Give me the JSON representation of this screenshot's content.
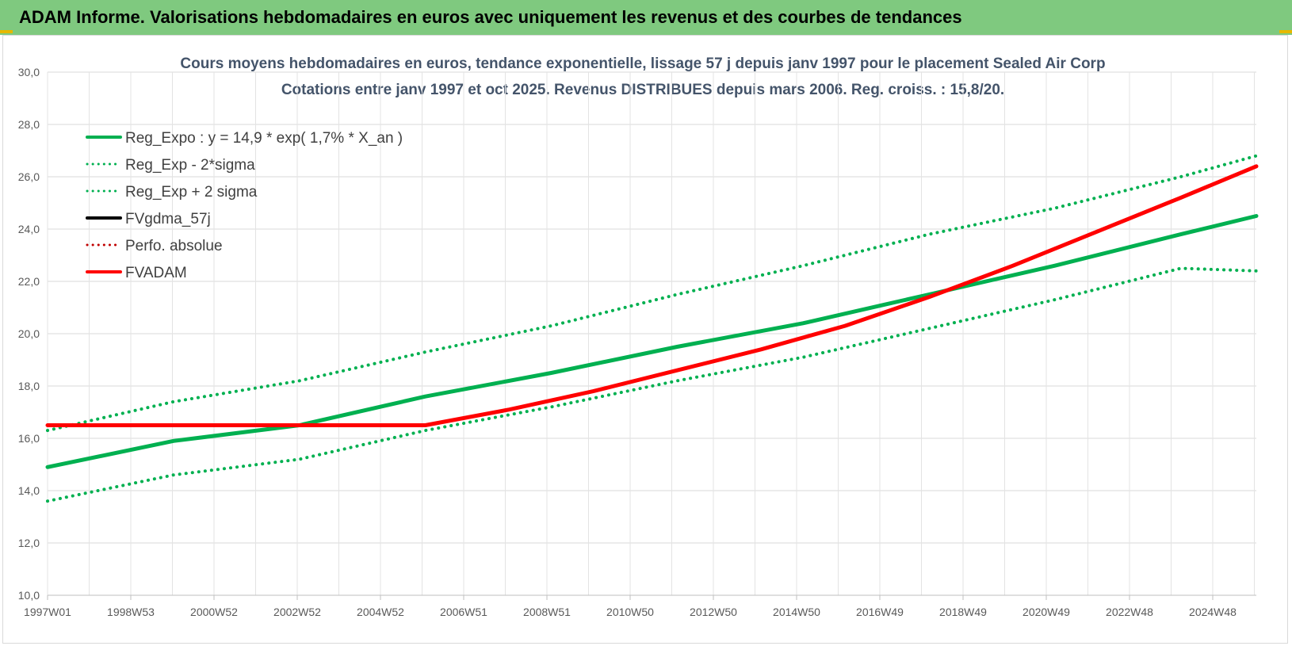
{
  "header": {
    "title": "ADAM Informe. Valorisations hebdomadaires en euros avec uniquement les revenus et des courbes de tendances"
  },
  "chart_data": {
    "type": "line",
    "title": "Cours moyens hebdomadaires en euros, tendance exponentielle, lissage 57 j depuis janv 1997  pour le placement Sealed Air Corp",
    "subtitle": "Cotations entre janv 1997 et oct 2025. Revenus DISTRIBUES depuis mars 2006.  Reg. croiss. : 15,8/20.",
    "xlabel": "",
    "ylabel": "",
    "ylim": [
      10,
      30
    ],
    "yticks": [
      "10,0",
      "12,0",
      "14,0",
      "16,0",
      "18,0",
      "20,0",
      "22,0",
      "24,0",
      "26,0",
      "28,0",
      "30,0"
    ],
    "xlim": [
      1997.0,
      2025.8
    ],
    "xtick_labels": [
      "1997W01",
      "1998W53",
      "2000W52",
      "2002W52",
      "2004W52",
      "2006W51",
      "2008W51",
      "2010W50",
      "2012W50",
      "2014W50",
      "2016W49",
      "2018W49",
      "2020W49",
      "2022W48",
      "2024W48"
    ],
    "grid": true,
    "legend_position": "top-left",
    "series": [
      {
        "name": "Reg_Expo : y = 14,9 * exp( 1,7% *  X_an )",
        "color": "#00b050",
        "style": "solid",
        "x": [
          1997.0,
          2000.0,
          2003.0,
          2006.0,
          2009.0,
          2012.0,
          2015.0,
          2018.0,
          2021.0,
          2024.0,
          2025.8
        ],
        "y": [
          14.9,
          15.9,
          16.5,
          17.6,
          18.5,
          19.5,
          20.4,
          21.5,
          22.6,
          23.8,
          24.5
        ]
      },
      {
        "name": "Reg_Exp - 2*sigma",
        "color": "#00b050",
        "style": "dotted",
        "x": [
          1997.0,
          2000.0,
          2003.0,
          2006.0,
          2009.0,
          2012.0,
          2015.0,
          2018.0,
          2021.0,
          2024.0,
          2025.8
        ],
        "y": [
          13.6,
          14.6,
          15.2,
          16.3,
          17.2,
          18.2,
          19.1,
          20.2,
          21.3,
          22.5,
          22.4
        ]
      },
      {
        "name": "Reg_Exp + 2 sigma",
        "color": "#00b050",
        "style": "dotted",
        "x": [
          1997.0,
          2000.0,
          2003.0,
          2006.0,
          2009.0,
          2012.0,
          2015.0,
          2018.0,
          2021.0,
          2024.0,
          2025.8
        ],
        "y": [
          16.3,
          17.4,
          18.2,
          19.3,
          20.3,
          21.5,
          22.6,
          23.8,
          24.8,
          26.0,
          26.8
        ]
      },
      {
        "name": "FVgdma_57j",
        "color": "#000000",
        "style": "solid",
        "x": [],
        "y": []
      },
      {
        "name": "Perfo. absolue",
        "color": "#c00000",
        "style": "dotted",
        "x": [],
        "y": []
      },
      {
        "name": "FVADAM",
        "color": "#ff0000",
        "style": "solid",
        "x": [
          1997.0,
          2003.0,
          2006.0,
          2008.0,
          2010.0,
          2012.0,
          2014.0,
          2016.0,
          2018.0,
          2020.0,
          2022.0,
          2024.0,
          2025.8
        ],
        "y": [
          16.5,
          16.5,
          16.5,
          17.1,
          17.8,
          18.6,
          19.4,
          20.3,
          21.4,
          22.6,
          23.9,
          25.2,
          26.4
        ]
      }
    ]
  }
}
